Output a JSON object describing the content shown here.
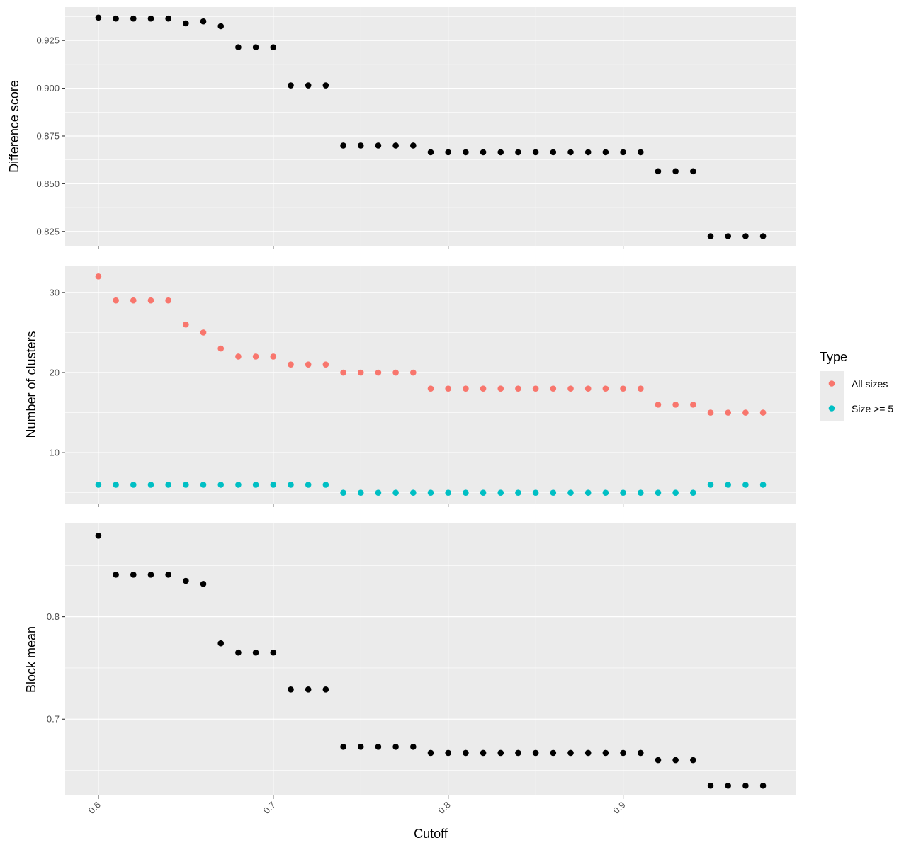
{
  "chart_data": {
    "type": "scatter",
    "x": [
      0.6,
      0.61,
      0.62,
      0.63,
      0.64,
      0.65,
      0.66,
      0.67,
      0.68,
      0.69,
      0.7,
      0.71,
      0.72,
      0.73,
      0.74,
      0.75,
      0.76,
      0.77,
      0.78,
      0.79,
      0.8,
      0.81,
      0.82,
      0.83,
      0.84,
      0.85,
      0.86,
      0.87,
      0.88,
      0.89,
      0.9,
      0.91,
      0.92,
      0.93,
      0.94,
      0.95,
      0.96,
      0.97,
      0.98
    ],
    "xlabel": "Cutoff",
    "x_ticks": [
      "0.6",
      "0.7",
      "0.8",
      "0.9"
    ],
    "xlim": [
      0.581,
      0.999
    ],
    "panels": [
      {
        "ylabel": "Difference score",
        "ylim": [
          0.8175,
          0.9425
        ],
        "y_ticks": [
          "0.825",
          "0.850",
          "0.875",
          "0.900",
          "0.925"
        ],
        "series": [
          {
            "color": "#000000",
            "values": [
              0.937,
              0.9365,
              0.9365,
              0.9365,
              0.9365,
              0.934,
              0.935,
              0.9325,
              0.9215,
              0.9215,
              0.9215,
              0.9015,
              0.9015,
              0.9015,
              0.87,
              0.87,
              0.87,
              0.87,
              0.87,
              0.8665,
              0.8665,
              0.8665,
              0.8665,
              0.8665,
              0.8665,
              0.8665,
              0.8665,
              0.8665,
              0.8665,
              0.8665,
              0.8665,
              0.8665,
              0.8565,
              0.8565,
              0.8565,
              0.8225,
              0.8225,
              0.8225,
              0.8225
            ]
          }
        ]
      },
      {
        "ylabel": "Number of clusters",
        "ylim": [
          3.65,
          33.35
        ],
        "y_ticks": [
          "10",
          "20",
          "30"
        ],
        "series": [
          {
            "name": "All sizes",
            "color": "#F8766D",
            "values": [
              32,
              29,
              29,
              29,
              29,
              26,
              25,
              23,
              22,
              22,
              22,
              21,
              21,
              21,
              20,
              20,
              20,
              20,
              20,
              18,
              18,
              18,
              18,
              18,
              18,
              18,
              18,
              18,
              18,
              18,
              18,
              18,
              16,
              16,
              16,
              15,
              15,
              15,
              15
            ]
          },
          {
            "name": "Size >= 5",
            "color": "#00BFC4",
            "values": [
              6,
              6,
              6,
              6,
              6,
              6,
              6,
              6,
              6,
              6,
              6,
              6,
              6,
              6,
              5,
              5,
              5,
              5,
              5,
              5,
              5,
              5,
              5,
              5,
              5,
              5,
              5,
              5,
              5,
              5,
              5,
              5,
              5,
              5,
              5,
              6,
              6,
              6,
              6
            ]
          }
        ]
      },
      {
        "ylabel": "Block mean",
        "ylim": [
          0.6255,
          0.891
        ],
        "y_ticks": [
          "0.7",
          "0.8"
        ],
        "series": [
          {
            "color": "#000000",
            "values": [
              0.879,
              0.841,
              0.841,
              0.841,
              0.841,
              0.835,
              0.832,
              0.774,
              0.765,
              0.765,
              0.765,
              0.729,
              0.729,
              0.729,
              0.673,
              0.673,
              0.673,
              0.673,
              0.673,
              0.667,
              0.667,
              0.667,
              0.667,
              0.667,
              0.667,
              0.667,
              0.667,
              0.667,
              0.667,
              0.667,
              0.667,
              0.667,
              0.66,
              0.66,
              0.66,
              0.635,
              0.635,
              0.635,
              0.635
            ]
          }
        ]
      }
    ],
    "legend": {
      "title": "Type",
      "position": "right",
      "entries": [
        {
          "label": "All sizes",
          "color": "#F8766D"
        },
        {
          "label": "Size >= 5",
          "color": "#00BFC4"
        }
      ]
    },
    "panel_background": "#EBEBEB",
    "grid": true
  }
}
